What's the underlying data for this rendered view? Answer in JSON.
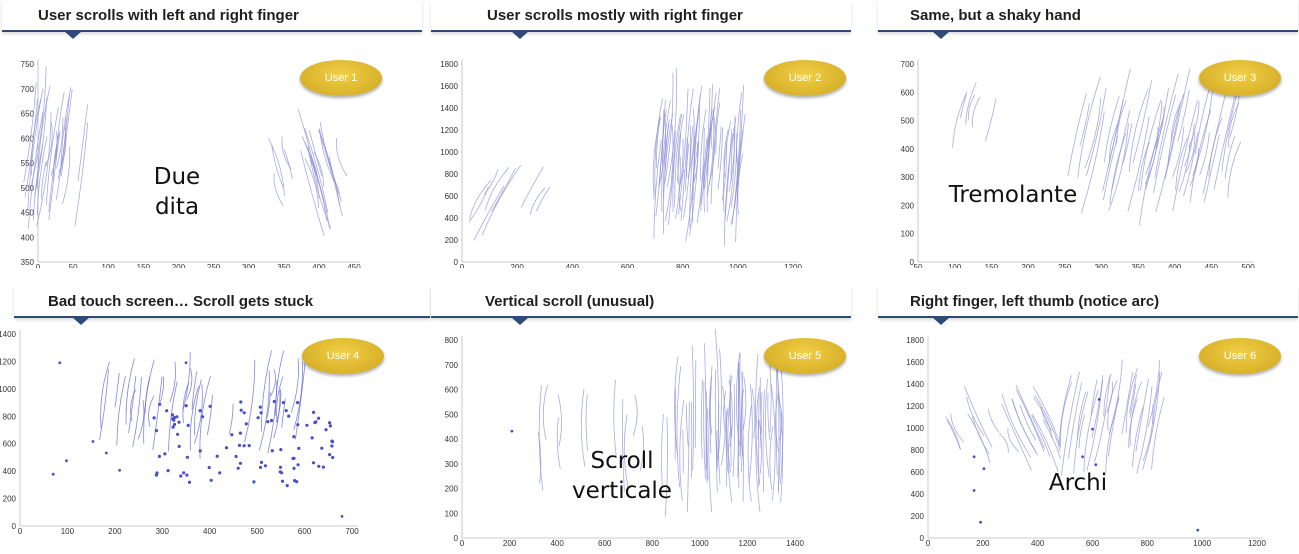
{
  "chart_data": [
    {
      "type": "scatter",
      "title": "User scrolls with left and right finger",
      "badge": "User 1",
      "annotation": "Due\ndita",
      "x_ticks": [
        0,
        50,
        100,
        150,
        200,
        250,
        300,
        350,
        400,
        450
      ],
      "y_ticks": [
        350,
        400,
        450,
        500,
        550,
        600,
        650,
        700,
        750
      ],
      "xlim": [
        0,
        450
      ],
      "ylim": [
        350,
        750
      ],
      "series_color": "#8b8fd6"
    },
    {
      "type": "scatter",
      "title": "User scrolls mostly with right finger",
      "badge": "User 2",
      "annotation": "",
      "x_ticks": [
        0,
        200,
        400,
        600,
        800,
        1000,
        1200
      ],
      "y_ticks": [
        0,
        200,
        400,
        600,
        800,
        1000,
        1200,
        1400,
        1600,
        1800
      ],
      "xlim": [
        0,
        1200
      ],
      "ylim": [
        0,
        1800
      ],
      "series_color": "#8b8fd6"
    },
    {
      "type": "scatter",
      "title": "Same, but a shaky hand",
      "badge": "User 3",
      "annotation": "Tremolante",
      "x_ticks": [
        50,
        100,
        150,
        200,
        250,
        300,
        350,
        400,
        450,
        500
      ],
      "y_ticks": [
        0,
        100,
        200,
        300,
        400,
        500,
        600,
        700
      ],
      "xlim": [
        50,
        500
      ],
      "ylim": [
        0,
        700
      ],
      "series_color": "#8b8fd6"
    },
    {
      "type": "scatter",
      "title": "Bad touch screen… Scroll gets stuck",
      "badge": "User 4",
      "annotation": "",
      "x_ticks": [
        0,
        100,
        200,
        300,
        400,
        500,
        600,
        700
      ],
      "y_ticks": [
        0,
        200,
        400,
        600,
        800,
        1000,
        1200,
        1400
      ],
      "xlim": [
        0,
        700
      ],
      "ylim": [
        0,
        1400
      ],
      "series_color": "#5a5fd0"
    },
    {
      "type": "scatter",
      "title": "Vertical scroll (unusual)",
      "badge": "User 5",
      "annotation": "Scroll\nverticale",
      "x_ticks": [
        0,
        200,
        400,
        600,
        800,
        1000,
        1200,
        1400
      ],
      "y_ticks": [
        0,
        100,
        200,
        300,
        400,
        500,
        600,
        700,
        800
      ],
      "xlim": [
        0,
        1400
      ],
      "ylim": [
        0,
        800
      ],
      "series_color": "#8b8fd6"
    },
    {
      "type": "scatter",
      "title": "Right finger, left thumb (notice arc)",
      "badge": "User 6",
      "annotation": "Archi",
      "x_ticks": [
        0,
        200,
        400,
        600,
        800,
        1000,
        1200
      ],
      "y_ticks": [
        0,
        200,
        400,
        600,
        800,
        1000,
        1200,
        1400,
        1600,
        1800
      ],
      "xlim": [
        0,
        1200
      ],
      "ylim": [
        0,
        1800
      ],
      "series_color": "#8b8fd6"
    }
  ]
}
